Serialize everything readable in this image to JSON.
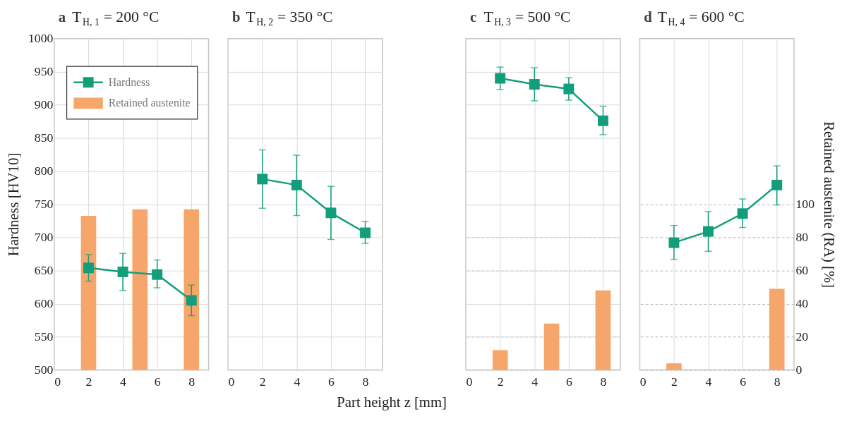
{
  "chart_data": [
    {
      "type": "line",
      "title": "T$_{H, 1}$ = 200 °C",
      "annotations": [
        "a"
      ],
      "ylabel": "Hardness [HV10]",
      "legend": "top left",
      "grid": true,
      "marker": "square",
      "line_style": "solid",
      "xlim": [
        0,
        9
      ],
      "xticks": [
        0,
        2,
        4,
        6,
        8
      ],
      "ylim": [
        500,
        1000
      ],
      "yticks": [
        500,
        550,
        600,
        650,
        700,
        750,
        800,
        850,
        900,
        950,
        1000
      ],
      "y2lim": [
        0,
        200
      ],
      "series": [
        {
          "name": "Hardness",
          "color": "#139e7b",
          "x": [
            2,
            4,
            6,
            8
          ],
          "values": [
            654,
            648,
            644,
            605
          ],
          "errors": [
            [
              634,
              674
            ],
            [
              620,
              676
            ],
            [
              624,
              666
            ],
            [
              582,
              628
            ]
          ]
        },
        {
          "name": "Retained austenite",
          "type": "bar",
          "axis": "y2",
          "color": "#f6a66a",
          "x": [
            2,
            5,
            8
          ],
          "values": [
            93,
            97,
            97
          ]
        }
      ]
    },
    {
      "type": "line",
      "title": "T$_{H, 2}$ = 350 °C",
      "annotations": [
        "b"
      ],
      "xlabel": "Part height z [mm]",
      "grid": true,
      "marker": "square",
      "line_style": "solid",
      "tick_labels": "x",
      "xlim": [
        0,
        9
      ],
      "xticks": [
        0,
        2,
        4,
        6,
        8
      ],
      "ylim": [
        500,
        1000
      ],
      "yticks": [
        500,
        550,
        600,
        650,
        700,
        750,
        800,
        850,
        900,
        950,
        1000
      ],
      "y2lim": [
        0,
        200
      ],
      "y2ticks": [
        0,
        20,
        40,
        60,
        80,
        100
      ],
      "series": [
        {
          "color": "#139e7b",
          "x": [
            2,
            4,
            6,
            8
          ],
          "values": [
            788,
            779,
            737,
            707
          ],
          "errors": [
            [
              744,
              832
            ],
            [
              733,
              824
            ],
            [
              697,
              777
            ],
            [
              691,
              724
            ]
          ]
        }
      ]
    },
    {
      "type": "line",
      "title": "T$_{H, 3}$ = 500 °C",
      "annotations": [
        "c"
      ],
      "grid": true,
      "marker": "square",
      "line_style": "solid",
      "tick_labels": "x",
      "xlim": [
        0,
        9
      ],
      "xticks": [
        0,
        2,
        4,
        6,
        8
      ],
      "ylim": [
        500,
        1000
      ],
      "yticks": [
        500,
        550,
        600,
        650,
        700,
        750,
        800,
        850,
        900,
        950,
        1000
      ],
      "y2lim": [
        0,
        200
      ],
      "y2ticks": [
        0,
        20,
        40,
        60,
        80,
        100
      ],
      "series": [
        {
          "color": "#139e7b",
          "x": [
            2,
            4,
            6,
            8
          ],
          "values": [
            940,
            931,
            924,
            876
          ],
          "errors": [
            [
              923,
              957
            ],
            [
              906,
              956
            ],
            [
              907,
              941
            ],
            [
              855,
              898
            ]
          ]
        },
        {
          "type": "bar",
          "axis": "y2",
          "color": "#f6a66a",
          "x": [
            2,
            5,
            8
          ],
          "values": [
            12,
            28,
            48
          ]
        }
      ]
    },
    {
      "type": "line",
      "title": "T$_{H, 4}$ = 600 °C",
      "annotations": [
        "d"
      ],
      "y2label": "Retained austenite (RA) [%]",
      "grid": true,
      "marker": "square",
      "line_style": "solid",
      "xlim": [
        0,
        9
      ],
      "xticks": [
        0,
        2,
        4,
        6,
        8
      ],
      "ylim": [
        500,
        1000
      ],
      "y2lim": [
        0,
        200
      ],
      "y2ticks": [
        0,
        20,
        40,
        60,
        80,
        100
      ],
      "series": [
        {
          "color": "#139e7b",
          "x": [
            2,
            4,
            6,
            8
          ],
          "values": [
            692,
            709,
            736,
            779
          ],
          "errors": [
            [
              667,
              718
            ],
            [
              679,
              739
            ],
            [
              715,
              758
            ],
            [
              749,
              808
            ]
          ]
        },
        {
          "type": "bar",
          "axis": "y2",
          "color": "#f6a66a",
          "x": [
            2,
            8
          ],
          "values": [
            4,
            49
          ]
        }
      ]
    }
  ]
}
